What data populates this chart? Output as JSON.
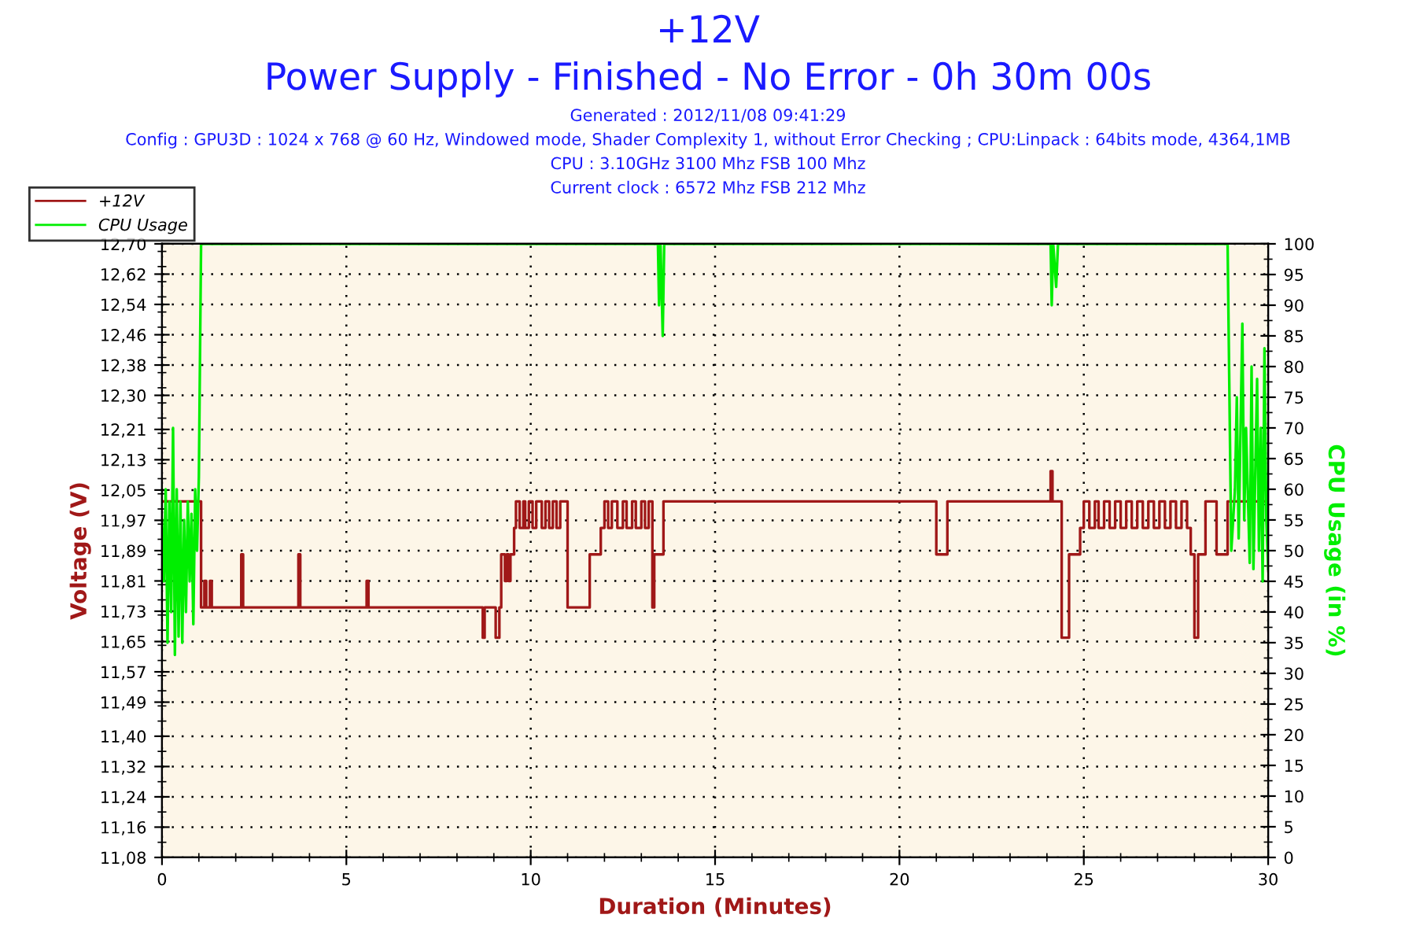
{
  "chart_data": {
    "type": "step",
    "title": "+12V",
    "subtitle": "Power Supply - Finished - No Error - 0h 30m 00s",
    "annotations": [
      "Generated : 2012/11/08 09:41:29",
      "Config : GPU3D : 1024 x 768 @ 60 Hz, Windowed mode, Shader Complexity 1, without Error Checking ; CPU:Linpack : 64bits mode, 4364,1MB",
      "CPU : 3.10GHz 3100 Mhz FSB 100 Mhz",
      "Current clock : 6572 Mhz FSB 212 Mhz"
    ],
    "xlabel": "Duration (Minutes)",
    "ylabel": "Voltage (V)",
    "y2label": "CPU Usage (in %)",
    "xlim": [
      0,
      30
    ],
    "xticks": [
      0,
      5,
      10,
      15,
      20,
      25,
      30
    ],
    "ylim": [
      11.08,
      12.7
    ],
    "yticks": [
      {
        "value": 11.08,
        "label": "11,08"
      },
      {
        "value": 11.16,
        "label": "11,16"
      },
      {
        "value": 11.24,
        "label": "11,24"
      },
      {
        "value": 11.32,
        "label": "11,32"
      },
      {
        "value": 11.4,
        "label": "11,40"
      },
      {
        "value": 11.49,
        "label": "11,49"
      },
      {
        "value": 11.57,
        "label": "11,57"
      },
      {
        "value": 11.65,
        "label": "11,65"
      },
      {
        "value": 11.73,
        "label": "11,73"
      },
      {
        "value": 11.81,
        "label": "11,81"
      },
      {
        "value": 11.89,
        "label": "11,89"
      },
      {
        "value": 11.97,
        "label": "11,97"
      },
      {
        "value": 12.05,
        "label": "12,05"
      },
      {
        "value": 12.13,
        "label": "12,13"
      },
      {
        "value": 12.21,
        "label": "12,21"
      },
      {
        "value": 12.3,
        "label": "12,30"
      },
      {
        "value": 12.38,
        "label": "12,38"
      },
      {
        "value": 12.46,
        "label": "12,46"
      },
      {
        "value": 12.54,
        "label": "12,54"
      },
      {
        "value": 12.62,
        "label": "12,62"
      },
      {
        "value": 12.7,
        "label": "12,70"
      }
    ],
    "y2lim": [
      0,
      100
    ],
    "y2ticks": [
      0,
      5,
      10,
      15,
      20,
      25,
      30,
      35,
      40,
      45,
      50,
      55,
      60,
      65,
      70,
      75,
      80,
      85,
      90,
      95,
      100
    ],
    "grid": true,
    "legend": "top left",
    "marker": "none",
    "line_style": "solid",
    "series": [
      {
        "name": "+12V",
        "color": "#a01818",
        "x": [
          0,
          1.06,
          1.15,
          1.2,
          1.3,
          1.35,
          2.15,
          2.2,
          3.7,
          3.75,
          5.55,
          5.6,
          8.7,
          8.75,
          9.05,
          9.15,
          9.2,
          9.3,
          9.35,
          9.4,
          9.45,
          9.55,
          9.6,
          9.7,
          9.8,
          9.85,
          9.95,
          10.05,
          10.15,
          10.3,
          10.4,
          10.5,
          10.6,
          10.7,
          10.8,
          11.0,
          11.6,
          11.9,
          12.0,
          12.1,
          12.2,
          12.35,
          12.5,
          12.6,
          12.75,
          12.85,
          13.0,
          13.1,
          13.2,
          13.3,
          13.35,
          13.6,
          21.0,
          21.3,
          24.1,
          24.15,
          24.4,
          24.6,
          24.9,
          25.0,
          25.15,
          25.3,
          25.4,
          25.55,
          25.7,
          25.85,
          26.0,
          26.15,
          26.3,
          26.45,
          26.6,
          26.75,
          26.9,
          27.05,
          27.2,
          27.35,
          27.5,
          27.65,
          27.8,
          27.9,
          28.0,
          28.1,
          28.3,
          28.6,
          28.9,
          30
        ],
        "values": [
          12.02,
          11.74,
          11.81,
          11.74,
          11.81,
          11.74,
          11.88,
          11.74,
          11.88,
          11.74,
          11.81,
          11.74,
          11.66,
          11.74,
          11.66,
          11.74,
          11.88,
          11.81,
          11.88,
          11.81,
          11.88,
          11.95,
          12.02,
          11.95,
          12.02,
          11.95,
          12.02,
          11.95,
          12.02,
          11.95,
          12.02,
          11.95,
          12.02,
          11.95,
          12.02,
          11.74,
          11.88,
          11.95,
          12.02,
          11.95,
          12.02,
          11.95,
          12.02,
          11.95,
          12.02,
          11.95,
          12.02,
          11.95,
          12.02,
          11.74,
          11.88,
          12.02,
          11.88,
          12.02,
          12.1,
          12.02,
          11.66,
          11.88,
          11.95,
          12.02,
          11.95,
          12.02,
          11.95,
          12.02,
          11.95,
          12.02,
          11.95,
          12.02,
          11.95,
          12.02,
          11.95,
          12.02,
          11.95,
          12.02,
          11.95,
          12.02,
          11.95,
          12.02,
          11.95,
          11.88,
          11.66,
          11.88,
          12.02,
          11.88,
          12.02,
          12.02
        ]
      },
      {
        "name": "CPU Usage",
        "color": "#00ee00",
        "type": "line",
        "axis": "y2",
        "x": [
          0,
          0.05,
          0.1,
          0.15,
          0.2,
          0.25,
          0.3,
          0.35,
          0.4,
          0.45,
          0.5,
          0.55,
          0.6,
          0.65,
          0.7,
          0.75,
          0.8,
          0.85,
          0.9,
          0.95,
          1.0,
          1.06,
          13.45,
          13.48,
          13.52,
          13.58,
          13.62,
          24.1,
          24.13,
          24.17,
          24.25,
          24.3,
          28.9,
          29.0,
          29.1,
          29.15,
          29.2,
          29.3,
          29.35,
          29.4,
          29.5,
          29.55,
          29.6,
          29.7,
          29.75,
          29.8,
          29.85,
          29.9,
          29.95,
          30
        ],
        "values": [
          55,
          45,
          60,
          35,
          58,
          40,
          70,
          33,
          60,
          36,
          58,
          35,
          55,
          40,
          58,
          45,
          56,
          38,
          60,
          50,
          62,
          100,
          100,
          90,
          100,
          85,
          100,
          100,
          90,
          100,
          93,
          100,
          100,
          50,
          60,
          75,
          52,
          87,
          55,
          70,
          48,
          80,
          47,
          78,
          50,
          70,
          45,
          83,
          55,
          47
        ]
      }
    ]
  }
}
